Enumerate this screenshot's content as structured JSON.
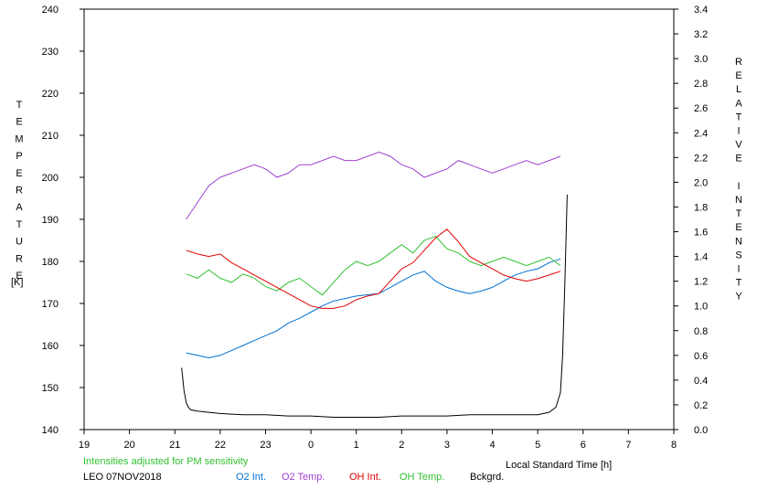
{
  "chart_data": {
    "type": "line",
    "ylabel_left": "TEMPERATURE",
    "ylabel_left_unit": "[K]",
    "ylabel_right": "RELATIVE INTENSITY",
    "xlabel": "Local Standard Time [h]",
    "note": "Intensities adjusted for PM sensitivity",
    "station": "LEO 07NOV2018",
    "xlim": [
      19,
      32
    ],
    "x_ticks": [
      19,
      20,
      21,
      22,
      23,
      24,
      25,
      26,
      27,
      28,
      29,
      30,
      31,
      32
    ],
    "x_tick_labels": [
      "19",
      "20",
      "21",
      "22",
      "23",
      "0",
      "1",
      "2",
      "3",
      "4",
      "5",
      "6",
      "7",
      "8"
    ],
    "ylim_left": [
      140,
      240
    ],
    "y_ticks_left": [
      "140",
      "150",
      "160",
      "170",
      "180",
      "190",
      "200",
      "210",
      "220",
      "230",
      "240"
    ],
    "ylim_right": [
      0.0,
      3.4
    ],
    "y_ticks_right": [
      "0.0",
      "0.2",
      "0.4",
      "0.6",
      "0.8",
      "1.0",
      "1.2",
      "1.4",
      "1.6",
      "1.8",
      "2.0",
      "2.2",
      "2.4",
      "2.6",
      "2.8",
      "3.0",
      "3.2",
      "3.4"
    ],
    "grid": false,
    "legend_position": "bottom",
    "series": [
      {
        "name": "O2 Int.",
        "axis": "right",
        "color": "#0070d0",
        "x": [
          21.25,
          21.5,
          21.75,
          22.0,
          22.25,
          22.5,
          22.75,
          23.0,
          23.25,
          23.5,
          23.75,
          24.0,
          24.25,
          24.5,
          24.75,
          25.0,
          25.25,
          25.5,
          25.75,
          26.0,
          26.25,
          26.5,
          26.75,
          27.0,
          27.25,
          27.5,
          27.75,
          28.0,
          28.25,
          28.5,
          28.75,
          29.0,
          29.25,
          29.5
        ],
        "y": [
          0.62,
          0.6,
          0.58,
          0.6,
          0.64,
          0.68,
          0.72,
          0.76,
          0.8,
          0.86,
          0.9,
          0.95,
          1.0,
          1.04,
          1.06,
          1.08,
          1.09,
          1.1,
          1.15,
          1.2,
          1.25,
          1.28,
          1.2,
          1.15,
          1.12,
          1.1,
          1.12,
          1.15,
          1.2,
          1.25,
          1.28,
          1.3,
          1.35,
          1.38
        ]
      },
      {
        "name": "O2 Temp.",
        "axis": "left",
        "color": "#a040d0",
        "x": [
          21.25,
          21.5,
          21.75,
          22.0,
          22.25,
          22.5,
          22.75,
          23.0,
          23.25,
          23.5,
          23.75,
          24.0,
          24.25,
          24.5,
          24.75,
          25.0,
          25.25,
          25.5,
          25.75,
          26.0,
          26.25,
          26.5,
          26.75,
          27.0,
          27.25,
          27.5,
          27.75,
          28.0,
          28.25,
          28.5,
          28.75,
          29.0,
          29.25,
          29.5
        ],
        "y": [
          190,
          194,
          198,
          200,
          201,
          202,
          203,
          202,
          200,
          201,
          203,
          203,
          204,
          205,
          204,
          204,
          205,
          206,
          205,
          203,
          202,
          200,
          201,
          202,
          204,
          203,
          202,
          201,
          202,
          203,
          204,
          203,
          204,
          205
        ]
      },
      {
        "name": "OH Int.",
        "axis": "right",
        "color": "#e00000",
        "x": [
          21.25,
          21.5,
          21.75,
          22.0,
          22.25,
          22.5,
          22.75,
          23.0,
          23.25,
          23.5,
          23.75,
          24.0,
          24.25,
          24.5,
          24.75,
          25.0,
          25.25,
          25.5,
          25.75,
          26.0,
          26.25,
          26.5,
          26.75,
          27.0,
          27.25,
          27.5,
          27.75,
          28.0,
          28.25,
          28.5,
          28.75,
          29.0,
          29.25,
          29.5
        ],
        "y": [
          1.45,
          1.42,
          1.4,
          1.42,
          1.35,
          1.3,
          1.25,
          1.2,
          1.15,
          1.1,
          1.05,
          1.0,
          0.98,
          0.98,
          1.0,
          1.05,
          1.08,
          1.1,
          1.2,
          1.3,
          1.35,
          1.45,
          1.55,
          1.62,
          1.52,
          1.4,
          1.35,
          1.3,
          1.25,
          1.22,
          1.2,
          1.22,
          1.25,
          1.28
        ]
      },
      {
        "name": "OH Temp.",
        "axis": "left",
        "color": "#30c030",
        "x": [
          21.25,
          21.5,
          21.75,
          22.0,
          22.25,
          22.5,
          22.75,
          23.0,
          23.25,
          23.5,
          23.75,
          24.0,
          24.25,
          24.5,
          24.75,
          25.0,
          25.25,
          25.5,
          25.75,
          26.0,
          26.25,
          26.5,
          26.75,
          27.0,
          27.25,
          27.5,
          27.75,
          28.0,
          28.25,
          28.5,
          28.75,
          29.0,
          29.25,
          29.5
        ],
        "y": [
          177,
          176,
          178,
          176,
          175,
          177,
          176,
          174,
          173,
          175,
          176,
          174,
          172,
          175,
          178,
          180,
          179,
          180,
          182,
          184,
          182,
          185,
          186,
          183,
          182,
          180,
          179,
          180,
          181,
          180,
          179,
          180,
          181,
          179
        ]
      },
      {
        "name": "Bckgrd.",
        "axis": "right",
        "color": "#000000",
        "x": [
          21.15,
          21.2,
          21.25,
          21.3,
          21.35,
          21.5,
          21.75,
          22.0,
          22.5,
          23.0,
          23.5,
          24.0,
          24.5,
          25.0,
          25.5,
          26.0,
          26.5,
          27.0,
          27.5,
          28.0,
          28.5,
          29.0,
          29.25,
          29.4,
          29.5,
          29.55,
          29.6,
          29.65
        ],
        "y": [
          0.5,
          0.32,
          0.22,
          0.18,
          0.16,
          0.15,
          0.14,
          0.13,
          0.12,
          0.12,
          0.11,
          0.11,
          0.1,
          0.1,
          0.1,
          0.11,
          0.11,
          0.11,
          0.12,
          0.12,
          0.12,
          0.12,
          0.14,
          0.18,
          0.3,
          0.6,
          1.2,
          1.9
        ]
      }
    ]
  }
}
